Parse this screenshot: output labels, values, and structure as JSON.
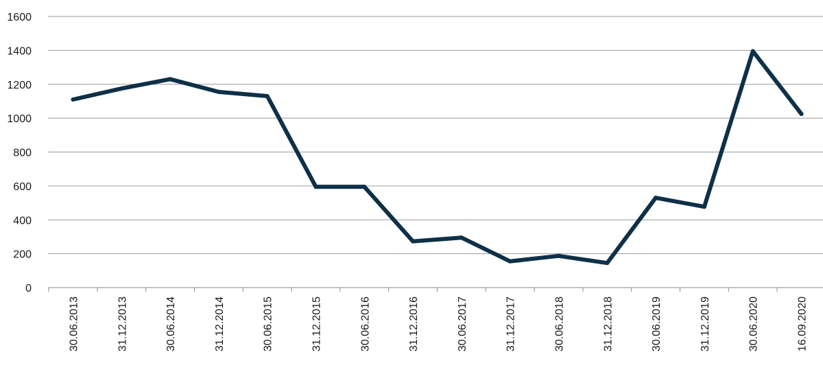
{
  "chart_data": {
    "type": "line",
    "title": "",
    "xlabel": "",
    "ylabel": "",
    "ylim": [
      0,
      1600
    ],
    "yticks": [
      0,
      200,
      400,
      600,
      800,
      1000,
      1200,
      1400,
      1600
    ],
    "grid": "horizontal",
    "legend": "none",
    "line_color": "#0e3048",
    "categories": [
      "30.06.2013",
      "31.12.2013",
      "30.06.2014",
      "31.12.2014",
      "30.06.2015",
      "31.12.2015",
      "30.06.2016",
      "31.12.2016",
      "30.06.2017",
      "31.12.2017",
      "30.06.2018",
      "31.12.2018",
      "30.06.2019",
      "31.12.2019",
      "30.06.2020",
      "16.09.2020"
    ],
    "series": [
      {
        "values": [
          1110,
          1175,
          1230,
          1155,
          1130,
          595,
          595,
          273,
          295,
          155,
          187,
          145,
          530,
          477,
          1395,
          1025
        ]
      }
    ]
  }
}
